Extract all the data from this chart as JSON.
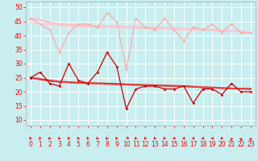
{
  "background_color": "#c8eef0",
  "grid_color": "#ffffff",
  "ylim": [
    8,
    52
  ],
  "xlim": [
    -0.5,
    23.5
  ],
  "yticks": [
    10,
    15,
    20,
    25,
    30,
    35,
    40,
    45,
    50
  ],
  "xticks": [
    0,
    1,
    2,
    3,
    4,
    5,
    6,
    7,
    8,
    9,
    10,
    11,
    12,
    13,
    14,
    15,
    16,
    17,
    18,
    19,
    20,
    21,
    22,
    23
  ],
  "series": [
    {
      "y": [
        46,
        44,
        42,
        34,
        41,
        44,
        44,
        43,
        48,
        45,
        28,
        46,
        43,
        42,
        46,
        42,
        38,
        43,
        42,
        44,
        41,
        44,
        41,
        41
      ],
      "color": "#ffaaaa",
      "lw": 0.9,
      "marker": "D",
      "ms": 1.8
    },
    {
      "y": [
        46,
        45.5,
        44.5,
        44.0,
        43.8,
        43.6,
        43.4,
        43.3,
        43.2,
        43.1,
        43.0,
        42.9,
        42.8,
        42.7,
        42.6,
        42.5,
        42.3,
        42.2,
        42.1,
        42.0,
        41.8,
        41.6,
        41.4,
        41.2
      ],
      "color": "#ffbbcc",
      "lw": 1.5,
      "marker": null,
      "ms": 0
    },
    {
      "y": [
        44.5,
        44.2,
        43.8,
        43.5,
        43.3,
        43.2,
        43.1,
        43.0,
        42.9,
        42.8,
        42.7,
        42.6,
        42.5,
        42.4,
        42.3,
        42.2,
        42.1,
        42.0,
        41.9,
        41.7,
        41.5,
        41.4,
        41.3,
        41.1
      ],
      "color": "#ffcccc",
      "lw": 1.2,
      "marker": null,
      "ms": 0
    },
    {
      "y": [
        25,
        27,
        23,
        22,
        30,
        24,
        23,
        27,
        34,
        29,
        14,
        21,
        22,
        22,
        21,
        21,
        22,
        16,
        21,
        21,
        19,
        23,
        20,
        20
      ],
      "color": "#cc0000",
      "lw": 0.9,
      "marker": "D",
      "ms": 1.8
    },
    {
      "y": [
        25,
        24.5,
        24.0,
        23.6,
        23.4,
        23.2,
        23.1,
        23.0,
        22.9,
        22.8,
        22.6,
        22.5,
        22.4,
        22.3,
        22.2,
        22.1,
        22.0,
        21.8,
        21.6,
        21.5,
        21.3,
        21.2,
        21.1,
        21.0
      ],
      "color": "#cc2222",
      "lw": 1.5,
      "marker": null,
      "ms": 0
    },
    {
      "y": [
        25,
        24.3,
        23.8,
        23.5,
        23.3,
        23.1,
        23.0,
        22.9,
        22.7,
        22.6,
        22.5,
        22.4,
        22.3,
        22.2,
        22.1,
        22.0,
        21.9,
        21.7,
        21.6,
        21.4,
        21.3,
        21.2,
        21.1,
        21.0
      ],
      "color": "#ee4444",
      "lw": 1.2,
      "marker": null,
      "ms": 0
    }
  ],
  "wind_arrow_angles": [
    -135,
    -135,
    -135,
    -135,
    -135,
    -135,
    -135,
    -135,
    -135,
    -135,
    0,
    -135,
    -135,
    -135,
    -135,
    -45,
    -45,
    -45,
    -45,
    -45,
    -135,
    -90,
    -90,
    -90
  ],
  "tick_fontsize": 5.5,
  "label_fontsize": 6.5
}
